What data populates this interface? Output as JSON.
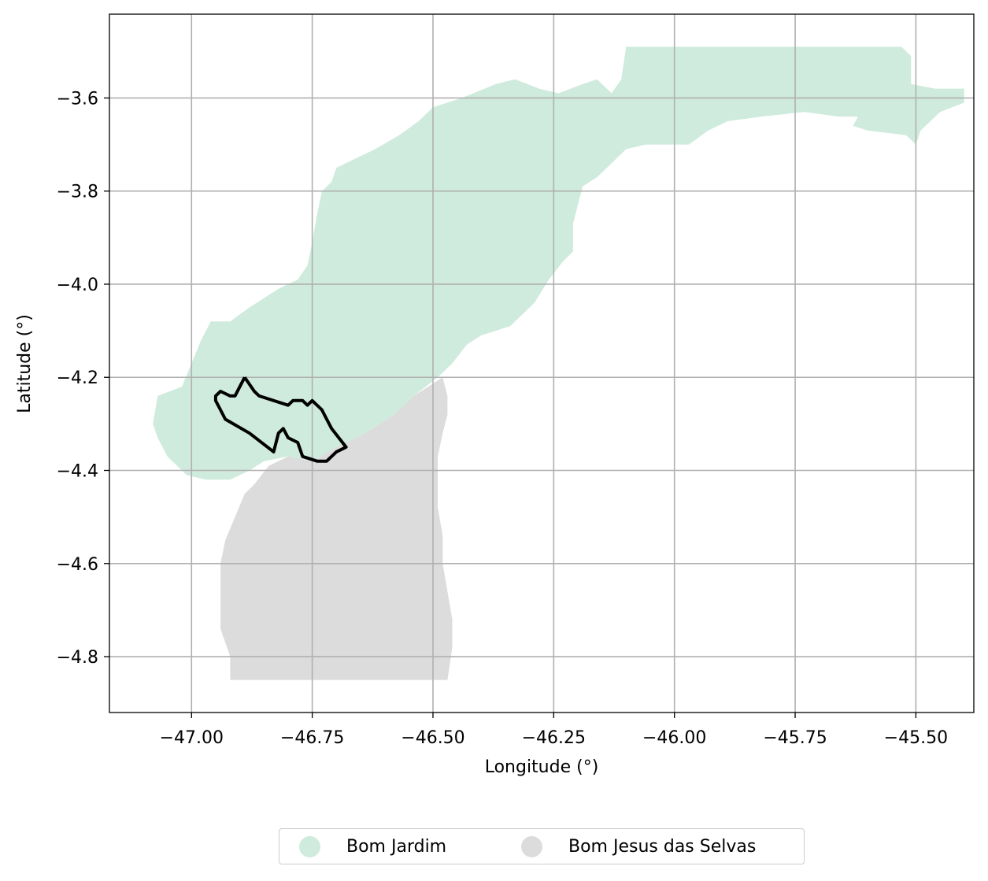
{
  "chart_data": {
    "type": "map",
    "xlabel": "Longitude (°)",
    "ylabel": "Latitude (°)",
    "xlim": [
      -47.17,
      -45.38
    ],
    "ylim": [
      -4.92,
      -3.42
    ],
    "grid": true,
    "legend_placement": "bottom-center",
    "x_ticks": [
      {
        "value": -47.0,
        "label": "−47.00"
      },
      {
        "value": -46.75,
        "label": "−46.75"
      },
      {
        "value": -46.5,
        "label": "−46.50"
      },
      {
        "value": -46.25,
        "label": "−46.25"
      },
      {
        "value": -46.0,
        "label": "−46.00"
      },
      {
        "value": -45.75,
        "label": "−45.75"
      },
      {
        "value": -45.5,
        "label": "−45.50"
      }
    ],
    "y_ticks": [
      {
        "value": -3.6,
        "label": "−3.6"
      },
      {
        "value": -3.8,
        "label": "−3.8"
      },
      {
        "value": -4.0,
        "label": "−4.0"
      },
      {
        "value": -4.2,
        "label": "−4.2"
      },
      {
        "value": -4.4,
        "label": "−4.4"
      },
      {
        "value": -4.6,
        "label": "−4.6"
      },
      {
        "value": -4.8,
        "label": "−4.8"
      }
    ],
    "regions": [
      {
        "name": "Bom Jardim",
        "color": "#cfebdd",
        "polygon": [
          [
            -46.1,
            -3.49
          ],
          [
            -45.53,
            -3.49
          ],
          [
            -45.51,
            -3.51
          ],
          [
            -45.51,
            -3.57
          ],
          [
            -45.46,
            -3.58
          ],
          [
            -45.4,
            -3.58
          ],
          [
            -45.4,
            -3.61
          ],
          [
            -45.45,
            -3.63
          ],
          [
            -45.49,
            -3.67
          ],
          [
            -45.5,
            -3.7
          ],
          [
            -45.52,
            -3.68
          ],
          [
            -45.6,
            -3.67
          ],
          [
            -45.63,
            -3.66
          ],
          [
            -45.62,
            -3.64
          ],
          [
            -45.66,
            -3.64
          ],
          [
            -45.73,
            -3.63
          ],
          [
            -45.82,
            -3.64
          ],
          [
            -45.89,
            -3.65
          ],
          [
            -45.93,
            -3.67
          ],
          [
            -45.97,
            -3.7
          ],
          [
            -46.01,
            -3.7
          ],
          [
            -46.06,
            -3.7
          ],
          [
            -46.1,
            -3.71
          ],
          [
            -46.16,
            -3.77
          ],
          [
            -46.19,
            -3.79
          ],
          [
            -46.2,
            -3.83
          ],
          [
            -46.21,
            -3.87
          ],
          [
            -46.21,
            -3.93
          ],
          [
            -46.23,
            -3.95
          ],
          [
            -46.26,
            -3.99
          ],
          [
            -46.29,
            -4.04
          ],
          [
            -46.34,
            -4.09
          ],
          [
            -46.4,
            -4.11
          ],
          [
            -46.43,
            -4.13
          ],
          [
            -46.46,
            -4.17
          ],
          [
            -46.49,
            -4.2
          ],
          [
            -46.54,
            -4.24
          ],
          [
            -46.58,
            -4.28
          ],
          [
            -46.64,
            -4.32
          ],
          [
            -46.7,
            -4.35
          ],
          [
            -46.75,
            -4.38
          ],
          [
            -46.8,
            -4.37
          ],
          [
            -46.85,
            -4.38
          ],
          [
            -46.88,
            -4.4
          ],
          [
            -46.92,
            -4.42
          ],
          [
            -46.97,
            -4.42
          ],
          [
            -47.01,
            -4.41
          ],
          [
            -47.05,
            -4.37
          ],
          [
            -47.07,
            -4.33
          ],
          [
            -47.08,
            -4.3
          ],
          [
            -47.07,
            -4.24
          ],
          [
            -47.02,
            -4.22
          ],
          [
            -47.0,
            -4.17
          ],
          [
            -46.98,
            -4.12
          ],
          [
            -46.96,
            -4.08
          ],
          [
            -46.92,
            -4.08
          ],
          [
            -46.88,
            -4.05
          ],
          [
            -46.85,
            -4.03
          ],
          [
            -46.82,
            -4.01
          ],
          [
            -46.78,
            -3.99
          ],
          [
            -46.76,
            -3.96
          ],
          [
            -46.75,
            -3.91
          ],
          [
            -46.74,
            -3.85
          ],
          [
            -46.73,
            -3.8
          ],
          [
            -46.71,
            -3.78
          ],
          [
            -46.7,
            -3.75
          ],
          [
            -46.66,
            -3.73
          ],
          [
            -46.62,
            -3.71
          ],
          [
            -46.57,
            -3.68
          ],
          [
            -46.53,
            -3.65
          ],
          [
            -46.5,
            -3.62
          ],
          [
            -46.44,
            -3.6
          ],
          [
            -46.37,
            -3.57
          ],
          [
            -46.33,
            -3.56
          ],
          [
            -46.28,
            -3.58
          ],
          [
            -46.24,
            -3.59
          ],
          [
            -46.19,
            -3.57
          ],
          [
            -46.16,
            -3.56
          ],
          [
            -46.13,
            -3.59
          ],
          [
            -46.11,
            -3.56
          ]
        ]
      },
      {
        "name": "Bom Jesus das Selvas",
        "color": "#dcdcdc",
        "polygon": [
          [
            -46.48,
            -4.2
          ],
          [
            -46.47,
            -4.24
          ],
          [
            -46.47,
            -4.28
          ],
          [
            -46.48,
            -4.32
          ],
          [
            -46.49,
            -4.37
          ],
          [
            -46.49,
            -4.42
          ],
          [
            -46.49,
            -4.48
          ],
          [
            -46.48,
            -4.54
          ],
          [
            -46.48,
            -4.6
          ],
          [
            -46.47,
            -4.66
          ],
          [
            -46.46,
            -4.72
          ],
          [
            -46.46,
            -4.78
          ],
          [
            -46.47,
            -4.85
          ],
          [
            -46.92,
            -4.85
          ],
          [
            -46.92,
            -4.8
          ],
          [
            -46.94,
            -4.74
          ],
          [
            -46.94,
            -4.67
          ],
          [
            -46.94,
            -4.6
          ],
          [
            -46.93,
            -4.55
          ],
          [
            -46.91,
            -4.5
          ],
          [
            -46.89,
            -4.45
          ],
          [
            -46.87,
            -4.43
          ],
          [
            -46.84,
            -4.39
          ],
          [
            -46.8,
            -4.37
          ],
          [
            -46.75,
            -4.38
          ],
          [
            -46.7,
            -4.35
          ],
          [
            -46.64,
            -4.32
          ],
          [
            -46.58,
            -4.28
          ],
          [
            -46.54,
            -4.24
          ]
        ]
      }
    ],
    "outline": {
      "color": "#000000",
      "polyline": [
        [
          -46.89,
          -4.2
        ],
        [
          -46.87,
          -4.23
        ],
        [
          -46.86,
          -4.24
        ],
        [
          -46.8,
          -4.26
        ],
        [
          -46.79,
          -4.25
        ],
        [
          -46.77,
          -4.25
        ],
        [
          -46.76,
          -4.26
        ],
        [
          -46.75,
          -4.25
        ],
        [
          -46.73,
          -4.27
        ],
        [
          -46.72,
          -4.29
        ],
        [
          -46.71,
          -4.31
        ],
        [
          -46.68,
          -4.35
        ],
        [
          -46.7,
          -4.36
        ],
        [
          -46.72,
          -4.38
        ],
        [
          -46.74,
          -4.38
        ],
        [
          -46.77,
          -4.37
        ],
        [
          -46.78,
          -4.34
        ],
        [
          -46.8,
          -4.33
        ],
        [
          -46.81,
          -4.31
        ],
        [
          -46.82,
          -4.32
        ],
        [
          -46.83,
          -4.36
        ],
        [
          -46.88,
          -4.32
        ],
        [
          -46.93,
          -4.29
        ],
        [
          -46.94,
          -4.27
        ],
        [
          -46.95,
          -4.25
        ],
        [
          -46.95,
          -4.24
        ],
        [
          -46.94,
          -4.23
        ],
        [
          -46.92,
          -4.24
        ],
        [
          -46.91,
          -4.24
        ],
        [
          -46.89,
          -4.2
        ]
      ]
    }
  },
  "legend": {
    "items": [
      {
        "label": "Bom Jardim",
        "color": "#cfebdd"
      },
      {
        "label": "Bom Jesus das Selvas",
        "color": "#dcdcdc"
      }
    ]
  }
}
